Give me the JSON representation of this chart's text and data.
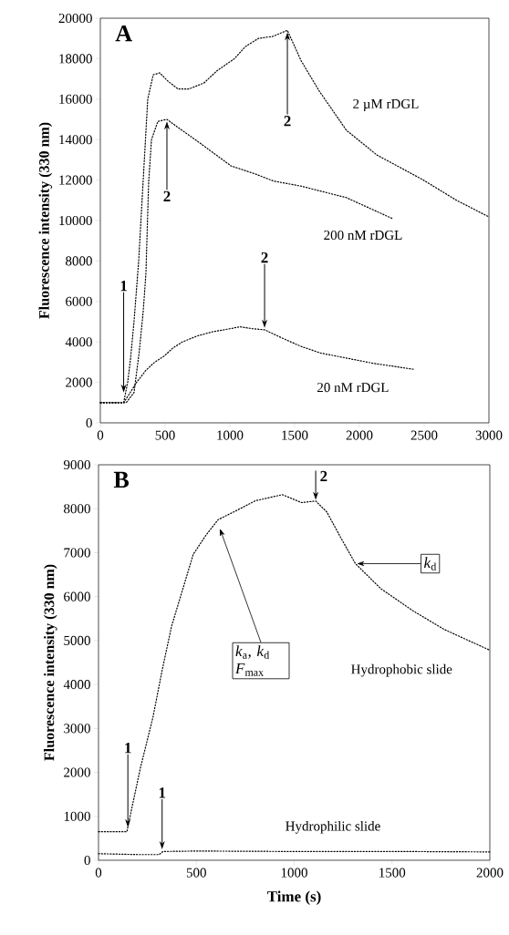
{
  "chart_data": [
    {
      "type": "line",
      "ylabel": "Fluorescence intensity (330 nm)",
      "xlim": [
        0,
        3000
      ],
      "ylim": [
        0,
        20000
      ],
      "xticks": [
        0,
        500,
        1000,
        1500,
        2000,
        2500,
        3000
      ],
      "yticks": [
        0,
        2000,
        4000,
        6000,
        8000,
        10000,
        12000,
        14000,
        16000,
        18000,
        20000
      ],
      "grid": false,
      "marker": "none",
      "line_style": "dotted",
      "series": [
        {
          "name": "2 µM rDGL",
          "color": "#000000",
          "x": [
            0,
            60,
            120,
            180,
            211,
            232,
            260,
            296,
            331,
            366,
            408,
            458,
            520,
            600,
            683,
            800,
            900,
            1035,
            1120,
            1220,
            1330,
            1444,
            1550,
            1690,
            1900,
            2135,
            2486,
            2750,
            3000
          ],
          "values": [
            1000,
            1000,
            1000,
            1000,
            2000,
            3100,
            5000,
            8000,
            12000,
            16000,
            17200,
            17300,
            16900,
            16500,
            16500,
            16800,
            17400,
            18000,
            18600,
            19000,
            19100,
            19400,
            17900,
            16400,
            14460,
            13240,
            12030,
            11000,
            10180
          ]
        },
        {
          "name": "200 nM rDGL",
          "color": "#000000",
          "x": [
            0,
            100,
            200,
            260,
            300,
            331,
            352,
            373,
            395,
            444,
            514,
            600,
            754,
            1009,
            1197,
            1338,
            1550,
            1900,
            2254
          ],
          "values": [
            1000,
            1000,
            1000,
            1500,
            3500,
            5500,
            7400,
            11900,
            14000,
            14900,
            15000,
            14600,
            13900,
            12700,
            12300,
            11950,
            11700,
            11130,
            10100
          ]
        },
        {
          "name": "20 nM rDGL",
          "color": "#000000",
          "x": [
            0,
            60,
            120,
            180,
            211,
            280,
            352,
            420,
            493,
            560,
            634,
            750,
            866,
            1000,
            1077,
            1180,
            1268,
            1400,
            1549,
            1700,
            1901,
            2100,
            2415
          ],
          "values": [
            1000,
            1000,
            1000,
            1000,
            1300,
            2000,
            2600,
            3000,
            3300,
            3700,
            4000,
            4300,
            4500,
            4650,
            4750,
            4650,
            4600,
            4200,
            3780,
            3450,
            3200,
            2950,
            2650
          ]
        }
      ],
      "annotations": [
        "**A**",
        {
          "text": "**1**",
          "x": 180,
          "y": 1500
        },
        {
          "text": "**2**",
          "x": 1444,
          "y": 19300
        },
        {
          "text": "**2**",
          "x": 514,
          "y": 14900
        },
        {
          "text": "**2**",
          "x": 1268,
          "y": 4700
        }
      ]
    },
    {
      "type": "line",
      "xlabel": "Time (s)",
      "ylabel": "Fluorescence intensity (330 nm)",
      "xlim": [
        0,
        2000
      ],
      "ylim": [
        0,
        9000
      ],
      "xticks": [
        0,
        500,
        1000,
        1500,
        2000
      ],
      "yticks": [
        0,
        1000,
        2000,
        3000,
        4000,
        5000,
        6000,
        7000,
        8000,
        9000
      ],
      "grid": false,
      "marker": "none",
      "line_style": "dotted",
      "series": [
        {
          "name": "Hydrophobic slide",
          "color": "#000000",
          "x": [
            0,
            50,
            100,
            145,
            151,
            214,
            278,
            325,
            373,
            436,
            484,
            548,
            611,
            706,
            801,
            940,
            1037,
            1110,
            1167,
            1232,
            1313,
            1443,
            1606,
            1768,
            2000
          ],
          "values": [
            650,
            650,
            650,
            650,
            785,
            2100,
            3250,
            4320,
            5320,
            6250,
            6960,
            7390,
            7750,
            7960,
            8180,
            8320,
            8140,
            8175,
            7925,
            7390,
            6750,
            6180,
            5680,
            5250,
            4780
          ]
        },
        {
          "name": "Hydrophilic slide",
          "color": "#000000",
          "x": [
            0,
            100,
            200,
            310,
            330,
            500,
            1000,
            1500,
            2000
          ],
          "values": [
            150,
            140,
            130,
            130,
            200,
            210,
            200,
            200,
            190
          ]
        }
      ],
      "annotations": [
        "**B**",
        {
          "text": "**1**",
          "x": 150,
          "y": 750
        },
        {
          "text": "**1**",
          "x": 325,
          "y": 250
        },
        {
          "text": "**2**",
          "x": 1110,
          "y": 8200
        },
        "*k*$_{a}$, *k*$_{d}$ *F*$_{max}$",
        "*k*$_{d}$"
      ]
    }
  ]
}
